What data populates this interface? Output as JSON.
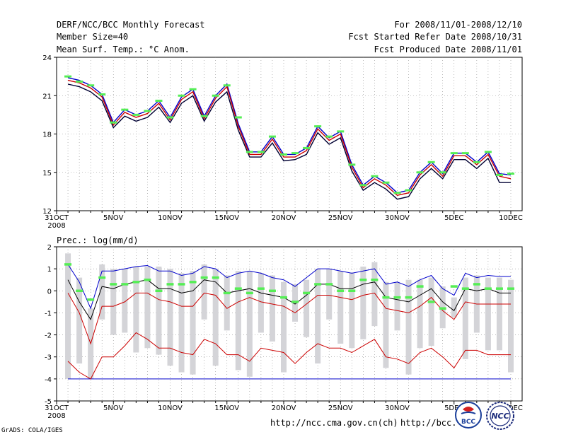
{
  "header": {
    "title": "DERF/NCC/BCC Monthly Forecast",
    "member_size": "Member Size=40",
    "variable": "Mean Surf. Temp.: °C Anom.",
    "period": "For 2008/11/01-2008/12/10",
    "started": "Fcst Started Refer Date 2008/10/31",
    "produced": "Fcst Produced Date 2008/11/01"
  },
  "footer": {
    "url1": "http://ncc.cma.gov.cn(ch)",
    "url2": "http://bcc.",
    "grads": "GrADS: COLA/IGES",
    "logo_bcc": "BCC",
    "logo_ncc": "NCC"
  },
  "colors": {
    "axis": "#000000",
    "grid": "#8a8a8a",
    "mean": "#000000",
    "upper": "#0000cc",
    "lower": "#cc0000",
    "obs": "#55ee55",
    "box": "#d4d4d8"
  },
  "chart_data": [
    {
      "type": "line",
      "title": "Mean Surf. Temp.: °C Anom.",
      "x_tick_labels": [
        "31OCT",
        "5NOV",
        "10NOV",
        "15NOV",
        "20NOV",
        "25NOV",
        "30NOV",
        "5DEC",
        "10DEC"
      ],
      "x_tick_days": [
        0,
        5,
        10,
        15,
        20,
        25,
        30,
        35,
        40
      ],
      "x_year_label": "2008",
      "ylim": [
        12,
        24
      ],
      "yticks": [
        12,
        15,
        18,
        21,
        24
      ],
      "x": [
        1,
        2,
        3,
        4,
        5,
        6,
        7,
        8,
        9,
        10,
        11,
        12,
        13,
        14,
        15,
        16,
        17,
        18,
        19,
        20,
        21,
        22,
        23,
        24,
        25,
        26,
        27,
        28,
        29,
        30,
        31,
        32,
        33,
        34,
        35,
        36,
        37,
        38,
        39,
        40
      ],
      "series": [
        {
          "name": "ensemble-max",
          "values": [
            22.4,
            22.2,
            21.8,
            21.1,
            18.9,
            19.9,
            19.5,
            19.8,
            20.6,
            19.3,
            20.9,
            21.5,
            19.4,
            21.0,
            21.9,
            18.8,
            16.6,
            16.6,
            17.8,
            16.4,
            16.4,
            16.9,
            18.6,
            17.7,
            18.2,
            15.6,
            14.0,
            14.7,
            14.2,
            13.4,
            13.6,
            15.0,
            15.8,
            14.9,
            16.5,
            16.5,
            15.8,
            16.6,
            14.9,
            14.8
          ]
        },
        {
          "name": "ensemble-mean",
          "values": [
            22.2,
            22.0,
            21.6,
            20.9,
            18.7,
            19.7,
            19.3,
            19.6,
            20.4,
            19.1,
            20.7,
            21.3,
            19.2,
            20.8,
            21.7,
            18.6,
            16.4,
            16.4,
            17.6,
            16.2,
            16.2,
            16.7,
            18.4,
            17.5,
            18.0,
            15.4,
            13.8,
            14.5,
            14.0,
            13.2,
            13.4,
            14.8,
            15.6,
            14.7,
            16.3,
            16.3,
            15.6,
            16.4,
            14.7,
            14.5
          ]
        },
        {
          "name": "ensemble-min",
          "values": [
            21.9,
            21.7,
            21.3,
            20.6,
            18.5,
            19.4,
            19.0,
            19.3,
            20.1,
            18.9,
            20.4,
            21.0,
            19.0,
            20.5,
            21.3,
            18.3,
            16.2,
            16.2,
            17.3,
            15.9,
            16.0,
            16.4,
            18.1,
            17.2,
            17.7,
            15.1,
            13.6,
            14.2,
            13.7,
            12.9,
            13.1,
            14.5,
            15.3,
            14.5,
            16.0,
            16.0,
            15.3,
            16.1,
            14.2,
            14.2
          ]
        },
        {
          "name": "observed",
          "values": [
            22.5,
            22.1,
            21.8,
            21.1,
            18.9,
            19.9,
            19.5,
            19.8,
            20.6,
            19.3,
            21.0,
            21.5,
            19.4,
            21.0,
            21.8,
            19.3,
            16.6,
            16.6,
            17.8,
            16.4,
            16.5,
            16.9,
            18.6,
            17.8,
            18.2,
            15.6,
            14.0,
            14.7,
            14.2,
            13.4,
            13.6,
            15.0,
            15.8,
            15.0,
            16.5,
            16.5,
            15.8,
            16.6,
            14.8,
            14.9
          ]
        }
      ]
    },
    {
      "type": "line",
      "title": "Prec.: log(mm/d)",
      "x_tick_labels": [
        "31OCT",
        "5NOV",
        "10NOV",
        "15NOV",
        "20NOV",
        "25NOV",
        "30NOV",
        "5DEC",
        "10DEC"
      ],
      "x_tick_days": [
        0,
        5,
        10,
        15,
        20,
        25,
        30,
        35,
        40
      ],
      "x_year_label": "2008",
      "ylim": [
        -5,
        2
      ],
      "yticks": [
        -5,
        -4,
        -3,
        -2,
        -1,
        0,
        1,
        2
      ],
      "x": [
        1,
        2,
        3,
        4,
        5,
        6,
        7,
        8,
        9,
        10,
        11,
        12,
        13,
        14,
        15,
        16,
        17,
        18,
        19,
        20,
        21,
        22,
        23,
        24,
        25,
        26,
        27,
        28,
        29,
        30,
        31,
        32,
        33,
        34,
        35,
        36,
        37,
        38,
        39,
        40
      ],
      "series": [
        {
          "name": "ensemble-max",
          "values": [
            1.2,
            0.4,
            -0.8,
            0.9,
            0.9,
            1.0,
            1.1,
            1.15,
            0.9,
            0.9,
            0.7,
            0.8,
            1.1,
            1.0,
            0.6,
            0.8,
            0.9,
            0.8,
            0.6,
            0.5,
            0.2,
            0.6,
            1.0,
            1.0,
            0.9,
            0.8,
            0.9,
            1.0,
            0.3,
            0.4,
            0.2,
            0.5,
            0.7,
            0.1,
            -0.2,
            0.8,
            0.6,
            0.7,
            0.65,
            0.65
          ]
        },
        {
          "name": "ensemble-mean",
          "values": [
            0.5,
            -0.5,
            -1.3,
            0.2,
            0.1,
            0.3,
            0.4,
            0.5,
            0.1,
            0.1,
            -0.1,
            0.0,
            0.5,
            0.4,
            -0.1,
            0.0,
            0.1,
            -0.1,
            -0.2,
            -0.3,
            -0.6,
            -0.2,
            0.3,
            0.3,
            0.1,
            0.1,
            0.3,
            0.4,
            -0.3,
            -0.4,
            -0.5,
            -0.2,
            0.1,
            -0.5,
            -0.9,
            0.1,
            0.0,
            0.1,
            -0.1,
            -0.1
          ]
        },
        {
          "name": "ensemble-upper-red",
          "values": [
            -0.1,
            -1.0,
            -2.4,
            -0.7,
            -0.7,
            -0.5,
            -0.1,
            -0.1,
            -0.4,
            -0.5,
            -0.7,
            -0.7,
            -0.1,
            -0.2,
            -0.8,
            -0.5,
            -0.3,
            -0.5,
            -0.6,
            -0.7,
            -1.0,
            -0.6,
            -0.2,
            -0.2,
            -0.3,
            -0.4,
            -0.2,
            -0.1,
            -0.8,
            -0.9,
            -1.0,
            -0.7,
            -0.3,
            -0.9,
            -1.3,
            -0.5,
            -0.6,
            -0.6,
            -0.6,
            -0.6
          ]
        },
        {
          "name": "ensemble-min",
          "values": [
            -3.2,
            -3.7,
            -4.0,
            -3.0,
            -3.0,
            -2.5,
            -1.9,
            -2.2,
            -2.6,
            -2.6,
            -2.8,
            -2.9,
            -2.2,
            -2.4,
            -2.9,
            -2.9,
            -3.2,
            -2.6,
            -2.7,
            -2.8,
            -3.3,
            -2.8,
            -2.4,
            -2.6,
            -2.6,
            -2.8,
            -2.5,
            -2.2,
            -3.0,
            -3.1,
            -3.3,
            -2.8,
            -2.6,
            -3.0,
            -3.5,
            -2.7,
            -2.7,
            -2.9,
            -2.9,
            -2.9
          ]
        },
        {
          "name": "floor",
          "values": [
            -4,
            -4,
            -4,
            -4,
            -4,
            -4,
            -4,
            -4,
            -4,
            -4,
            -4,
            -4,
            -4,
            -4,
            -4,
            -4,
            -4,
            -4,
            -4,
            -4,
            -4,
            -4,
            -4,
            -4,
            -4,
            -4,
            -4,
            -4,
            -4,
            -4,
            -4,
            -4,
            -4,
            -4,
            -4,
            -4,
            -4,
            -4,
            -4,
            -4
          ]
        },
        {
          "name": "observed",
          "values": [
            1.2,
            0.0,
            -0.4,
            0.6,
            0.3,
            0.3,
            0.4,
            0.5,
            0.0,
            0.3,
            0.3,
            0.4,
            0.6,
            0.6,
            -0.1,
            0.1,
            -0.1,
            0.1,
            0.0,
            -0.3,
            -0.5,
            -0.1,
            0.3,
            0.3,
            0.0,
            0.0,
            0.5,
            0.5,
            -0.3,
            -0.3,
            -0.3,
            0.2,
            -0.5,
            -0.8,
            0.2,
            0.1,
            0.3,
            0.1,
            0.1,
            0.1
          ]
        },
        {
          "name": "box-top",
          "values": [
            1.7,
            0.6,
            -0.8,
            1.2,
            1.0,
            1.0,
            1.1,
            1.1,
            1.1,
            1.0,
            0.8,
            0.9,
            1.2,
            1.0,
            0.7,
            0.9,
            0.9,
            0.8,
            0.7,
            0.4,
            0.3,
            0.5,
            1.0,
            1.0,
            0.9,
            0.8,
            1.1,
            1.3,
            0.4,
            0.4,
            0.5,
            0.5,
            0.6,
            0.2,
            -0.3,
            0.6,
            0.7,
            0.6,
            0.6,
            0.5
          ]
        },
        {
          "name": "box-bottom",
          "values": [
            -4.0,
            -3.3,
            -4.0,
            -1.3,
            -2.0,
            -1.9,
            -2.8,
            -2.6,
            -2.9,
            -3.4,
            -3.7,
            -3.8,
            -1.3,
            -3.4,
            -1.8,
            -3.6,
            -3.9,
            -1.9,
            -2.3,
            -3.7,
            -1.4,
            -2.1,
            -3.3,
            -1.3,
            -2.4,
            -2.6,
            -2.2,
            -1.6,
            -3.5,
            -1.8,
            -3.8,
            -2.6,
            -2.5,
            -1.7,
            -1.2,
            -3.1,
            -1.9,
            -2.7,
            -2.7,
            -3.7
          ]
        }
      ]
    }
  ]
}
